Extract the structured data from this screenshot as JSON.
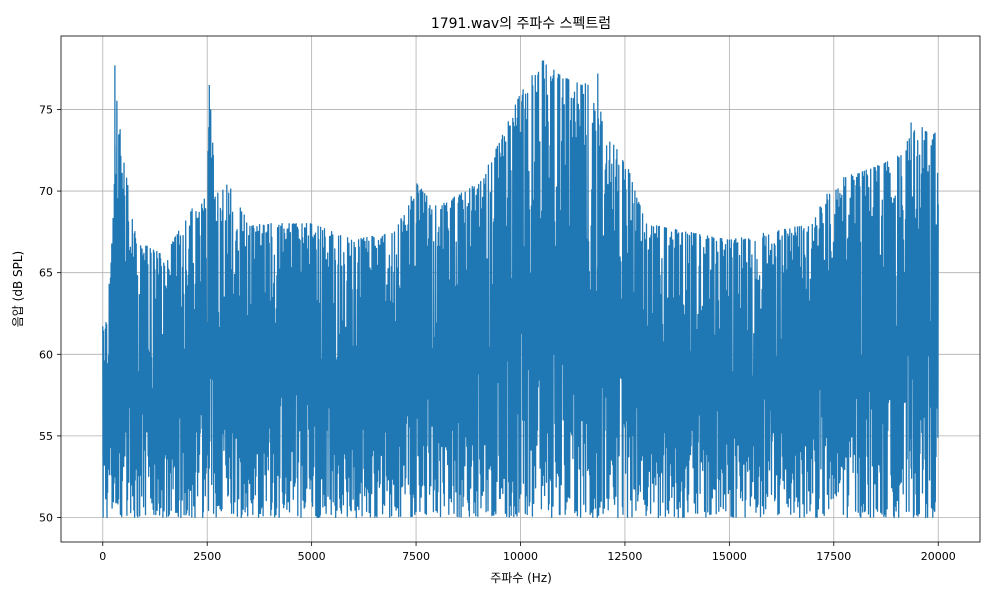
{
  "chart_data": {
    "type": "line",
    "title": "1791.wav의 주파수 스펙트럼",
    "xlabel": "주파수 (Hz)",
    "ylabel": "음압 (dB SPL)",
    "xlim": [
      -1000,
      21000
    ],
    "ylim": [
      48.5,
      79.5
    ],
    "x_ticks": [
      0,
      2500,
      5000,
      7500,
      10000,
      12500,
      15000,
      17500,
      20000
    ],
    "y_ticks": [
      50,
      55,
      60,
      65,
      70,
      75
    ],
    "grid": true,
    "series": [
      {
        "color": "#1f77b4",
        "x_range": [
          0,
          20000
        ],
        "floor": 50,
        "envelope": {
          "x": [
            0,
            100,
            250,
            300,
            500,
            800,
            1500,
            2000,
            2500,
            2550,
            2700,
            3000,
            3500,
            4000,
            5000,
            6000,
            7000,
            7500,
            8000,
            9000,
            9500,
            10000,
            10500,
            11000,
            11500,
            11800,
            12000,
            12500,
            13000,
            14000,
            15000,
            16000,
            17000,
            17500,
            18000,
            19000,
            19500,
            20000
          ],
          "y": [
            62.3,
            62.0,
            68.5,
            77.7,
            72.0,
            67.0,
            66.0,
            68.5,
            70.0,
            76.5,
            70.0,
            70.5,
            68.0,
            68.0,
            68.0,
            67.0,
            67.5,
            70.5,
            69.0,
            70.5,
            73.0,
            76.0,
            78.0,
            77.0,
            76.5,
            77.0,
            73.5,
            72.0,
            68.0,
            67.5,
            67.0,
            67.5,
            68.0,
            71.0,
            71.0,
            72.0,
            74.0,
            73.5
          ]
        },
        "annotated_peaks": [
          {
            "x": 290,
            "y": 77.7
          },
          {
            "x": 2550,
            "y": 76.5
          },
          {
            "x": 10550,
            "y": 78.0
          },
          {
            "x": 11850,
            "y": 77.2
          },
          {
            "x": 19350,
            "y": 74.2
          }
        ]
      }
    ]
  }
}
